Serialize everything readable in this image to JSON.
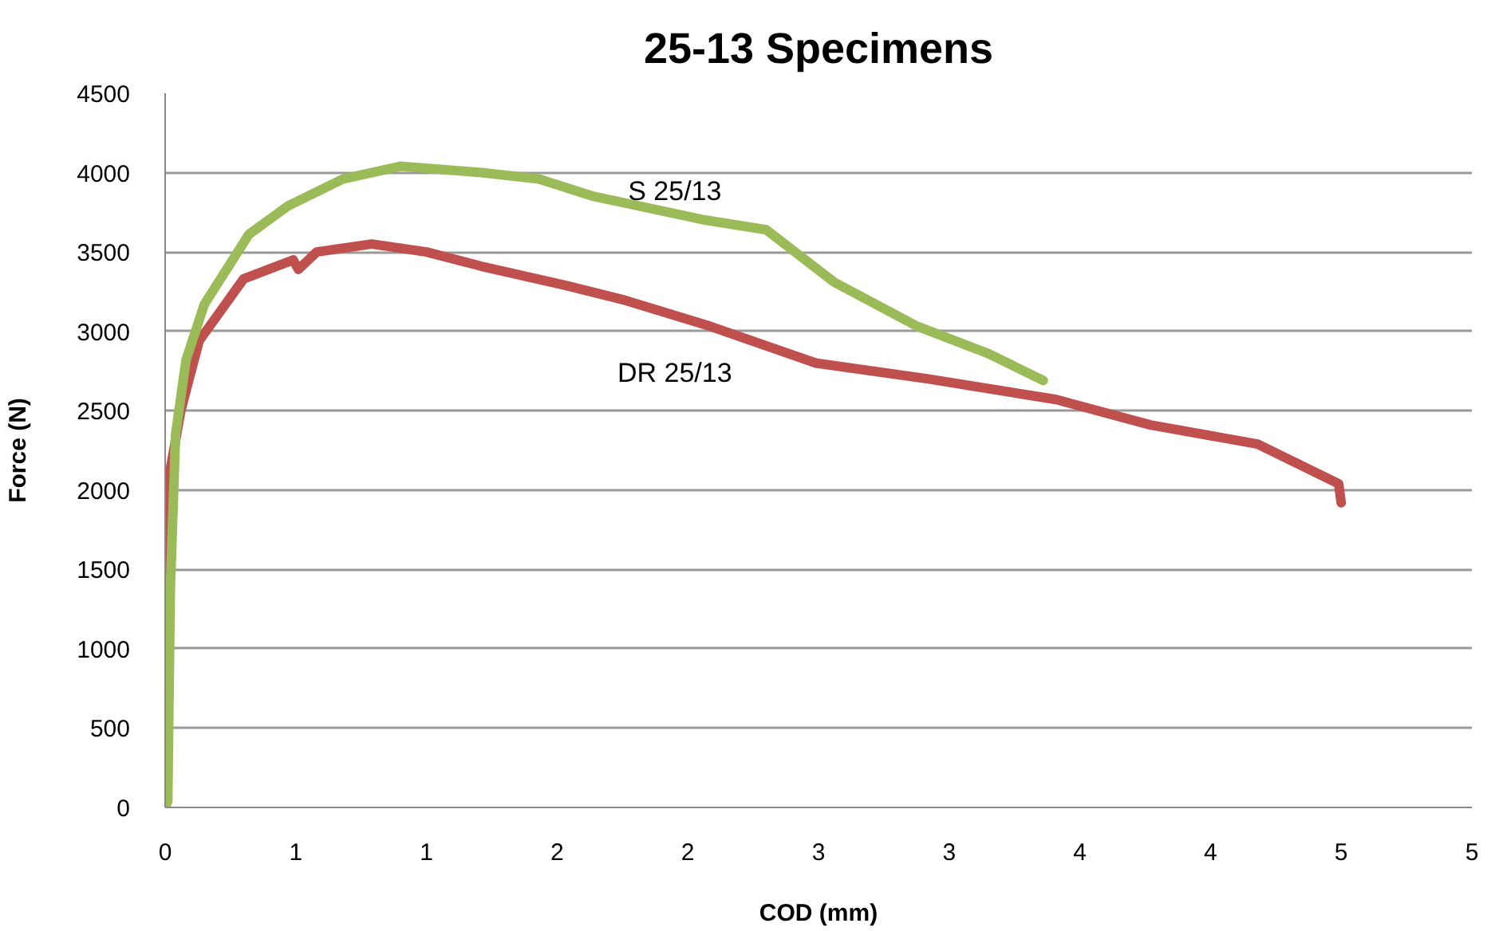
{
  "chart_data": {
    "type": "line",
    "title": "25-13 Specimens",
    "xlabel": "COD (mm)",
    "ylabel": "Force (N)",
    "xlim": [
      0,
      5
    ],
    "xticks": [
      0,
      {
        "value": 0.5,
        "label": "1"
      },
      {
        "value": 1,
        "label": "1"
      },
      {
        "value": 1.5,
        "label": "2"
      },
      {
        "value": 2,
        "label": "2"
      },
      {
        "value": 2.5,
        "label": "3"
      },
      {
        "value": 3,
        "label": "3"
      },
      {
        "value": 3.5,
        "label": "4"
      },
      {
        "value": 4,
        "label": "4"
      },
      {
        "value": 4.5,
        "label": "5"
      },
      {
        "value": 5,
        "label": "5"
      }
    ],
    "ylim": [
      0,
      4500
    ],
    "yticks": [
      0,
      500,
      1000,
      1500,
      2000,
      2500,
      3000,
      3500,
      4000,
      4500
    ],
    "grid": "y",
    "marker": "none",
    "line_style": "solid",
    "series": [
      {
        "name": "DR 25/13",
        "color": "#c0504d",
        "x": [
          0,
          0,
          0.01,
          0.06,
          0.13,
          0.3,
          0.49,
          0.51,
          0.58,
          0.79,
          1.0,
          1.21,
          1.53,
          1.75,
          2.07,
          2.49,
          2.92,
          3.41,
          3.77,
          4.18,
          4.49,
          4.5
        ],
        "values": [
          0,
          860,
          2040,
          2500,
          2940,
          3330,
          3450,
          3390,
          3500,
          3550,
          3500,
          3410,
          3290,
          3200,
          3040,
          2800,
          2700,
          2570,
          2410,
          2290,
          2040,
          1920
        ]
      },
      {
        "name": "S 25/13",
        "color": "#9bbb59",
        "x": [
          0,
          0.01,
          0.02,
          0.04,
          0.08,
          0.15,
          0.32,
          0.47,
          0.68,
          0.9,
          1.21,
          1.43,
          1.64,
          2.07,
          2.3,
          2.56,
          2.88,
          3.15,
          3.36
        ],
        "values": [
          0,
          40,
          1380,
          2350,
          2820,
          3170,
          3610,
          3790,
          3960,
          4040,
          4000,
          3960,
          3850,
          3700,
          3640,
          3310,
          3030,
          2860,
          2690
        ]
      }
    ]
  }
}
